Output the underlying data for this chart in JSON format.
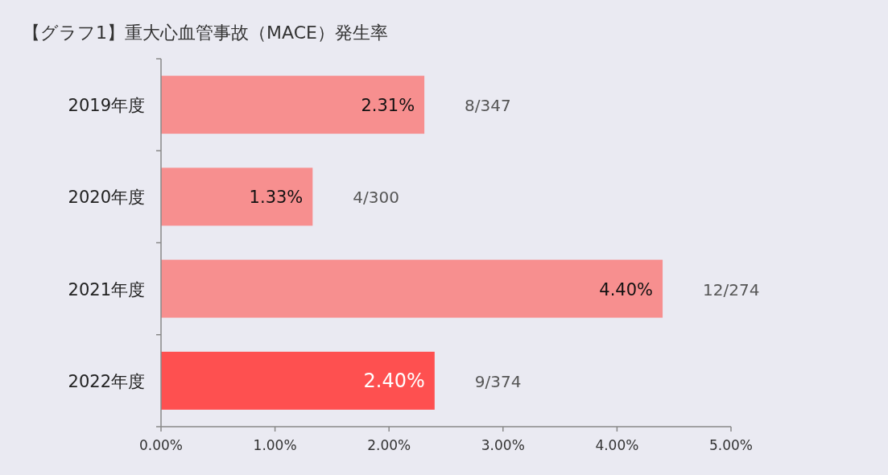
{
  "chart_data": {
    "type": "bar",
    "orientation": "horizontal",
    "title": "【グラフ1】重大心血管事故（MACE）発生率",
    "categories": [
      "2019年度",
      "2020年度",
      "2021年度",
      "2022年度"
    ],
    "values": [
      2.31,
      1.33,
      4.4,
      2.4
    ],
    "colors": [
      "#f78f8f",
      "#f78f8f",
      "#f78f8f",
      "#fe5050"
    ],
    "value_labels": [
      "2.31%",
      "1.33%",
      "4.40%",
      "2.40%"
    ],
    "xlim": [
      0,
      5
    ],
    "xticks": [
      {
        "value": 0,
        "label": "0.00%"
      },
      {
        "value": 1,
        "label": "1.00%"
      },
      {
        "value": 2,
        "label": "2.00%"
      },
      {
        "value": 3,
        "label": "3.00%"
      },
      {
        "value": 4,
        "label": "4.00%"
      },
      {
        "value": 5,
        "label": "5.00%"
      }
    ],
    "annotations": [
      "8/347",
      "4/300",
      "12/274",
      "9/374"
    ],
    "grid": false
  }
}
